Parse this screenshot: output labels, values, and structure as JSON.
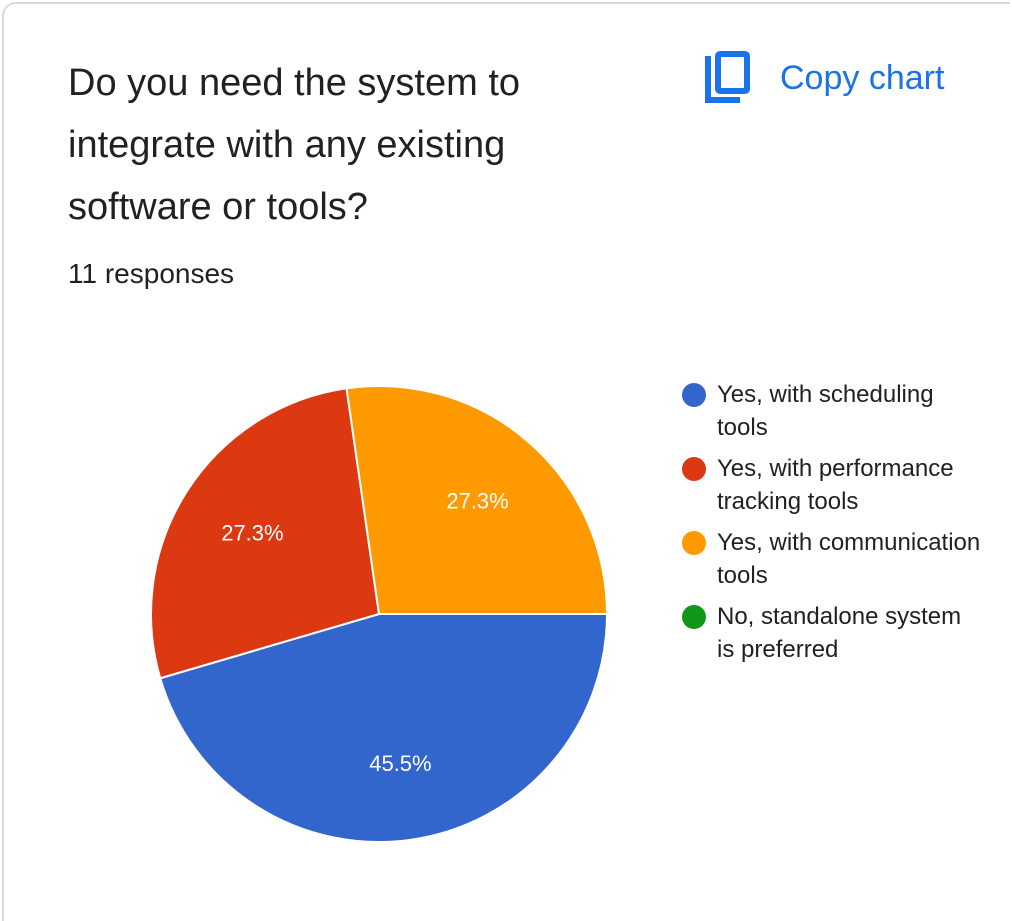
{
  "header": {
    "title": "Do you need the system to integrate with any existing software or tools?",
    "responses": "11 responses",
    "copy_label": "Copy chart",
    "copy_icon": "copy-icon"
  },
  "colors": {
    "accent": "#1a73e8"
  },
  "chart_data": {
    "type": "pie",
    "categories": [
      "Yes, with scheduling tools",
      "Yes, with performance tracking tools",
      "Yes, with communication tools",
      "No, standalone system is preferred"
    ],
    "values": [
      45.5,
      27.3,
      27.3,
      0
    ],
    "value_labels": [
      "45.5%",
      "27.3%",
      "27.3%",
      ""
    ],
    "colors": [
      "#3366cc",
      "#dc3912",
      "#ff9900",
      "#109618"
    ],
    "legend": "right"
  }
}
